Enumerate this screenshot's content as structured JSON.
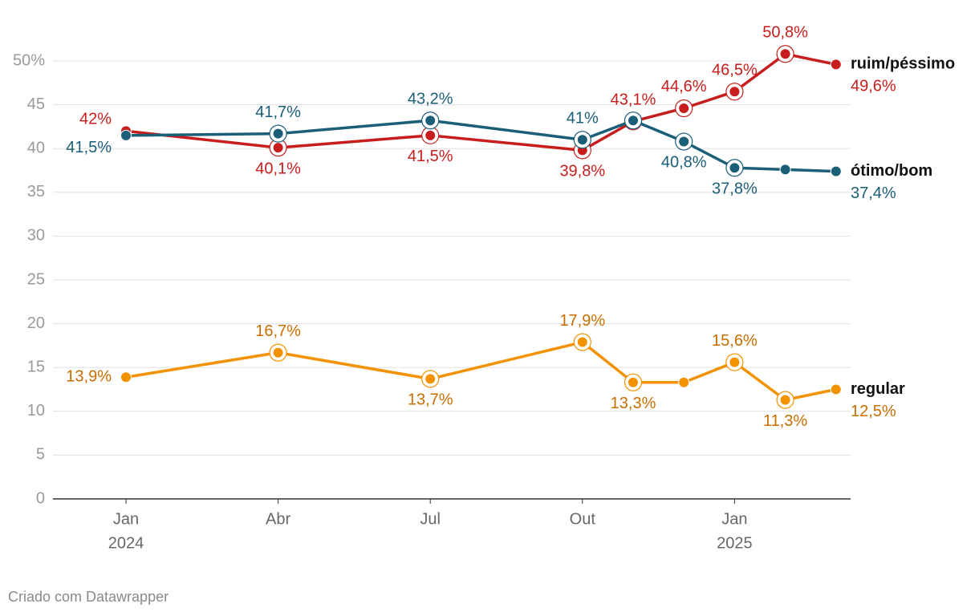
{
  "chart_data": {
    "type": "line",
    "x": [
      "2024-01",
      "2024-04",
      "2024-07",
      "2024-10",
      "2024-11",
      "2024-12",
      "2025-01",
      "2025-02",
      "2025-03"
    ],
    "xticks": [
      {
        "value": "2024-01",
        "label": "Jan",
        "year": "2024"
      },
      {
        "value": "2024-04",
        "label": "Abr"
      },
      {
        "value": "2024-07",
        "label": "Jul"
      },
      {
        "value": "2024-10",
        "label": "Out"
      },
      {
        "value": "2025-01",
        "label": "Jan",
        "year": "2025"
      }
    ],
    "ylim": [
      0,
      50
    ],
    "yticks": [
      0,
      5,
      10,
      15,
      20,
      25,
      30,
      35,
      40,
      45,
      {
        "value": 50,
        "label": "50%"
      }
    ],
    "grid": true,
    "series": [
      {
        "name": "ruim/péssimo",
        "color": "#c71e1d",
        "label_color": "#c71e1d",
        "values": [
          42,
          40.1,
          41.5,
          39.8,
          43.1,
          44.6,
          46.5,
          50.8,
          49.6
        ],
        "value_labels": [
          "42%",
          "40,1%",
          "41,5%",
          "39,8%",
          "43,1%",
          "44,6%",
          "46,5%",
          "50,8%",
          "49,6%"
        ],
        "highlighted": [
          1,
          2,
          3,
          4,
          5,
          6,
          7
        ]
      },
      {
        "name": "ótimo/bom",
        "color": "#1b5e78",
        "label_color": "#1b5e78",
        "values": [
          41.5,
          41.7,
          43.2,
          41,
          43.2,
          40.8,
          37.8,
          37.6,
          37.4
        ],
        "value_labels": [
          "41,5%",
          "41,7%",
          "43,2%",
          "41%",
          null,
          "40,8%",
          "37,8%",
          null,
          "37,4%"
        ],
        "highlighted": [
          1,
          2,
          3,
          4,
          5,
          6
        ]
      },
      {
        "name": "regular",
        "color": "#f39200",
        "label_color": "#c86e00",
        "values": [
          13.9,
          16.7,
          13.7,
          17.9,
          13.3,
          13.3,
          15.6,
          11.3,
          12.5
        ],
        "value_labels": [
          "13,9%",
          "16,7%",
          "13,7%",
          "17,9%",
          "13,3%",
          null,
          "15,6%",
          "11,3%",
          "12,5%"
        ],
        "highlighted": [
          1,
          2,
          3,
          4,
          6,
          7
        ]
      }
    ],
    "footer": "Criado com Datawrapper"
  }
}
